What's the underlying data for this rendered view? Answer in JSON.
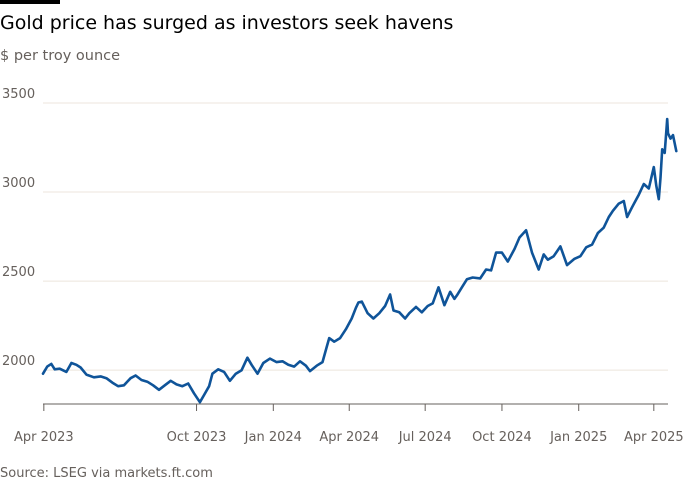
{
  "title": "Gold price has surged as investors seek havens",
  "subtitle": "$ per troy ounce",
  "source": "Source: LSEG via markets.ft.com",
  "colors": {
    "line": "#0f5499",
    "grid": "#ece5dc",
    "axis": "#66605c",
    "text": "#66605c"
  },
  "chart_data": {
    "type": "line",
    "title": "Gold price has surged as investors seek havens",
    "ylabel": "$ per troy ounce",
    "xlabel": "",
    "xlim": [
      "2023-03-31",
      "2025-04-18"
    ],
    "ylim": [
      1810,
      3500
    ],
    "y_ticks": [
      2000,
      2500,
      3000,
      3500
    ],
    "x_ticks": [
      {
        "date": "2023-04-01",
        "label": "Apr 2023"
      },
      {
        "date": "2023-10-01",
        "label": "Oct 2023"
      },
      {
        "date": "2024-01-01",
        "label": "Jan 2024"
      },
      {
        "date": "2024-04-01",
        "label": "Apr 2024"
      },
      {
        "date": "2024-07-01",
        "label": "Jul 2024"
      },
      {
        "date": "2024-10-01",
        "label": "Oct 2024"
      },
      {
        "date": "2025-01-01",
        "label": "Jan 2025"
      },
      {
        "date": "2025-04-01",
        "label": "Apr 2025"
      }
    ],
    "series": [
      {
        "name": "Gold price",
        "points": [
          [
            "2023-03-31",
            1980
          ],
          [
            "2023-04-05",
            2020
          ],
          [
            "2023-04-10",
            2035
          ],
          [
            "2023-04-14",
            2005
          ],
          [
            "2023-04-20",
            2008
          ],
          [
            "2023-04-28",
            1990
          ],
          [
            "2023-05-04",
            2040
          ],
          [
            "2023-05-10",
            2030
          ],
          [
            "2023-05-15",
            2015
          ],
          [
            "2023-05-22",
            1975
          ],
          [
            "2023-05-31",
            1960
          ],
          [
            "2023-06-08",
            1965
          ],
          [
            "2023-06-15",
            1955
          ],
          [
            "2023-06-22",
            1930
          ],
          [
            "2023-06-29",
            1910
          ],
          [
            "2023-07-06",
            1915
          ],
          [
            "2023-07-14",
            1955
          ],
          [
            "2023-07-20",
            1970
          ],
          [
            "2023-07-27",
            1945
          ],
          [
            "2023-08-03",
            1935
          ],
          [
            "2023-08-10",
            1915
          ],
          [
            "2023-08-17",
            1890
          ],
          [
            "2023-08-24",
            1915
          ],
          [
            "2023-08-31",
            1940
          ],
          [
            "2023-09-07",
            1920
          ],
          [
            "2023-09-14",
            1910
          ],
          [
            "2023-09-21",
            1925
          ],
          [
            "2023-09-28",
            1870
          ],
          [
            "2023-10-05",
            1820
          ],
          [
            "2023-10-10",
            1860
          ],
          [
            "2023-10-16",
            1910
          ],
          [
            "2023-10-20",
            1980
          ],
          [
            "2023-10-27",
            2005
          ],
          [
            "2023-11-03",
            1990
          ],
          [
            "2023-11-10",
            1940
          ],
          [
            "2023-11-17",
            1980
          ],
          [
            "2023-11-24",
            2000
          ],
          [
            "2023-12-01",
            2070
          ],
          [
            "2023-12-06",
            2030
          ],
          [
            "2023-12-13",
            1980
          ],
          [
            "2023-12-20",
            2040
          ],
          [
            "2023-12-28",
            2065
          ],
          [
            "2024-01-05",
            2045
          ],
          [
            "2024-01-12",
            2050
          ],
          [
            "2024-01-19",
            2030
          ],
          [
            "2024-01-26",
            2020
          ],
          [
            "2024-02-02",
            2050
          ],
          [
            "2024-02-09",
            2025
          ],
          [
            "2024-02-14",
            1995
          ],
          [
            "2024-02-22",
            2025
          ],
          [
            "2024-02-29",
            2045
          ],
          [
            "2024-03-05",
            2130
          ],
          [
            "2024-03-08",
            2180
          ],
          [
            "2024-03-14",
            2160
          ],
          [
            "2024-03-21",
            2180
          ],
          [
            "2024-03-28",
            2230
          ],
          [
            "2024-04-04",
            2290
          ],
          [
            "2024-04-09",
            2350
          ],
          [
            "2024-04-12",
            2380
          ],
          [
            "2024-04-16",
            2385
          ],
          [
            "2024-04-23",
            2320
          ],
          [
            "2024-04-30",
            2290
          ],
          [
            "2024-05-07",
            2320
          ],
          [
            "2024-05-14",
            2360
          ],
          [
            "2024-05-20",
            2425
          ],
          [
            "2024-05-24",
            2335
          ],
          [
            "2024-05-31",
            2325
          ],
          [
            "2024-06-07",
            2290
          ],
          [
            "2024-06-12",
            2320
          ],
          [
            "2024-06-20",
            2355
          ],
          [
            "2024-06-27",
            2325
          ],
          [
            "2024-07-04",
            2360
          ],
          [
            "2024-07-10",
            2375
          ],
          [
            "2024-07-17",
            2465
          ],
          [
            "2024-07-24",
            2365
          ],
          [
            "2024-07-31",
            2440
          ],
          [
            "2024-08-05",
            2400
          ],
          [
            "2024-08-08",
            2420
          ],
          [
            "2024-08-14",
            2465
          ],
          [
            "2024-08-20",
            2510
          ],
          [
            "2024-08-27",
            2520
          ],
          [
            "2024-09-05",
            2515
          ],
          [
            "2024-09-12",
            2565
          ],
          [
            "2024-09-18",
            2560
          ],
          [
            "2024-09-24",
            2660
          ],
          [
            "2024-10-01",
            2660
          ],
          [
            "2024-10-08",
            2610
          ],
          [
            "2024-10-16",
            2680
          ],
          [
            "2024-10-22",
            2745
          ],
          [
            "2024-10-30",
            2785
          ],
          [
            "2024-11-06",
            2660
          ],
          [
            "2024-11-14",
            2565
          ],
          [
            "2024-11-20",
            2650
          ],
          [
            "2024-11-25",
            2620
          ],
          [
            "2024-12-02",
            2640
          ],
          [
            "2024-12-10",
            2695
          ],
          [
            "2024-12-18",
            2590
          ],
          [
            "2024-12-27",
            2625
          ],
          [
            "2025-01-03",
            2640
          ],
          [
            "2025-01-10",
            2690
          ],
          [
            "2025-01-17",
            2705
          ],
          [
            "2025-01-24",
            2770
          ],
          [
            "2025-01-31",
            2800
          ],
          [
            "2025-02-06",
            2860
          ],
          [
            "2025-02-11",
            2895
          ],
          [
            "2025-02-18",
            2935
          ],
          [
            "2025-02-24",
            2950
          ],
          [
            "2025-02-28",
            2860
          ],
          [
            "2025-03-06",
            2915
          ],
          [
            "2025-03-14",
            2985
          ],
          [
            "2025-03-20",
            3045
          ],
          [
            "2025-03-26",
            3020
          ],
          [
            "2025-04-01",
            3140
          ],
          [
            "2025-04-04",
            3035
          ],
          [
            "2025-04-07",
            2960
          ],
          [
            "2025-04-09",
            3080
          ],
          [
            "2025-04-11",
            3240
          ],
          [
            "2025-04-14",
            3220
          ],
          [
            "2025-04-16",
            3340
          ],
          [
            "2025-04-17",
            3410
          ],
          [
            "2025-04-18",
            3330
          ],
          [
            "2025-04-21",
            3300
          ],
          [
            "2025-04-24",
            3320
          ],
          [
            "2025-04-28",
            3230
          ]
        ]
      }
    ]
  }
}
